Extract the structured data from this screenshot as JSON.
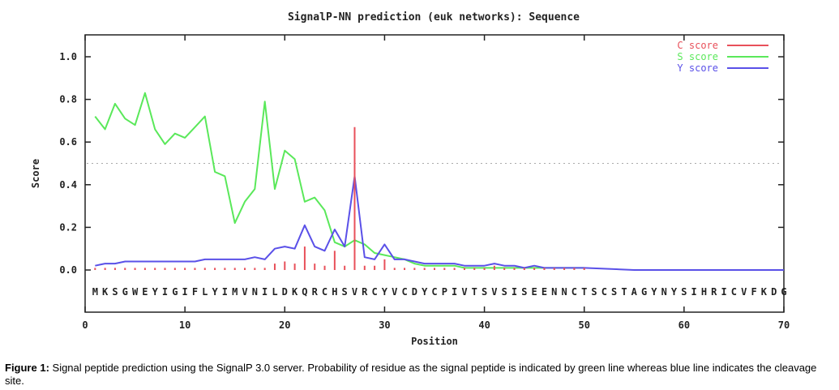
{
  "chart_data": {
    "type": "line",
    "title": "SignalP-NN prediction (euk networks): Sequence",
    "xlabel": "Position",
    "ylabel": "Score",
    "xlim": [
      0,
      70
    ],
    "ylim": [
      0,
      1.1
    ],
    "x_ticks": [
      "0",
      "10",
      "20",
      "30",
      "40",
      "50",
      "60",
      "70"
    ],
    "y_ticks": [
      "0.0",
      "0.2",
      "0.4",
      "0.6",
      "0.8",
      "1.0"
    ],
    "threshold": 0.5,
    "legend_position": "top-right",
    "sequence": [
      "M",
      "K",
      "S",
      "G",
      "W",
      "E",
      "Y",
      "I",
      "G",
      "I",
      "F",
      "L",
      "Y",
      "I",
      "M",
      "V",
      "N",
      "I",
      "L",
      "D",
      "K",
      "Q",
      "R",
      "C",
      "H",
      "S",
      "V",
      "R",
      "C",
      "Y",
      "V",
      "C",
      "D",
      "Y",
      "C",
      "P",
      "I",
      "V",
      "T",
      "S",
      "V",
      "S",
      "I",
      "S",
      "E",
      "E",
      "N",
      "N",
      "C",
      "T",
      "S",
      "C",
      "S",
      "T",
      "A",
      "G",
      "Y",
      "N",
      "Y",
      "S",
      "I",
      "H",
      "R",
      "I",
      "C",
      "V",
      "F",
      "K",
      "D",
      "G"
    ],
    "series": [
      {
        "name": "C score",
        "style": "impulse",
        "color": "#e8505a",
        "x": [
          1,
          2,
          3,
          4,
          5,
          6,
          7,
          8,
          9,
          10,
          11,
          12,
          13,
          14,
          15,
          16,
          17,
          18,
          19,
          20,
          21,
          22,
          23,
          24,
          25,
          26,
          27,
          28,
          29,
          30,
          31,
          32,
          33,
          34,
          35,
          36,
          37,
          38,
          39,
          40,
          41,
          42,
          43,
          44,
          45,
          46,
          47,
          48,
          49,
          50
        ],
        "values": [
          0.01,
          0.01,
          0.01,
          0.01,
          0.01,
          0.01,
          0.01,
          0.01,
          0.01,
          0.01,
          0.01,
          0.01,
          0.01,
          0.01,
          0.01,
          0.01,
          0.01,
          0.01,
          0.03,
          0.04,
          0.03,
          0.11,
          0.03,
          0.02,
          0.09,
          0.02,
          0.67,
          0.02,
          0.02,
          0.05,
          0.01,
          0.01,
          0.01,
          0.01,
          0.01,
          0.01,
          0.01,
          0.01,
          0.01,
          0.01,
          0.02,
          0.01,
          0.01,
          0.01,
          0.01,
          0.01,
          0.01,
          0.01,
          0.01,
          0.01
        ]
      },
      {
        "name": "S score",
        "style": "line",
        "color": "#5ae85a",
        "x": [
          1,
          2,
          3,
          4,
          5,
          6,
          7,
          8,
          9,
          10,
          11,
          12,
          13,
          14,
          15,
          16,
          17,
          18,
          19,
          20,
          21,
          22,
          23,
          24,
          25,
          26,
          27,
          28,
          29,
          30,
          31,
          32,
          33,
          34,
          35,
          36,
          37,
          38,
          39,
          40,
          41,
          42,
          43,
          44,
          45,
          46,
          47,
          48,
          49,
          50
        ],
        "values": [
          0.72,
          0.66,
          0.78,
          0.71,
          0.68,
          0.83,
          0.66,
          0.59,
          0.64,
          0.62,
          0.67,
          0.72,
          0.46,
          0.44,
          0.22,
          0.32,
          0.38,
          0.79,
          0.38,
          0.56,
          0.52,
          0.32,
          0.34,
          0.28,
          0.13,
          0.11,
          0.14,
          0.12,
          0.08,
          0.07,
          0.06,
          0.05,
          0.03,
          0.02,
          0.02,
          0.02,
          0.02,
          0.01,
          0.01,
          0.01,
          0.01,
          0.01,
          0.01,
          0.01,
          0.01,
          0.01,
          0.01,
          0.01,
          0.01,
          0.01
        ]
      },
      {
        "name": "Y score",
        "style": "line",
        "color": "#5a50e8",
        "x": [
          1,
          2,
          3,
          4,
          5,
          6,
          7,
          8,
          9,
          10,
          11,
          12,
          13,
          14,
          15,
          16,
          17,
          18,
          19,
          20,
          21,
          22,
          23,
          24,
          25,
          26,
          27,
          28,
          29,
          30,
          31,
          32,
          33,
          34,
          35,
          36,
          37,
          38,
          39,
          40,
          41,
          42,
          43,
          44,
          45,
          46,
          47,
          48,
          49,
          50,
          55,
          60,
          65,
          70
        ],
        "values": [
          0.02,
          0.03,
          0.03,
          0.04,
          0.04,
          0.04,
          0.04,
          0.04,
          0.04,
          0.04,
          0.04,
          0.05,
          0.05,
          0.05,
          0.05,
          0.05,
          0.06,
          0.05,
          0.1,
          0.11,
          0.1,
          0.21,
          0.11,
          0.09,
          0.19,
          0.11,
          0.44,
          0.06,
          0.05,
          0.12,
          0.05,
          0.05,
          0.04,
          0.03,
          0.03,
          0.03,
          0.03,
          0.02,
          0.02,
          0.02,
          0.03,
          0.02,
          0.02,
          0.01,
          0.02,
          0.01,
          0.01,
          0.01,
          0.01,
          0.01,
          0.0,
          0.0,
          0.0,
          0.0
        ]
      }
    ]
  },
  "caption": {
    "label": "Figure 1:",
    "text": " Signal peptide prediction using the SignalP 3.0 server. Probability of residue as the signal peptide is indicated by green line whereas blue line indicates the cleavage site."
  }
}
